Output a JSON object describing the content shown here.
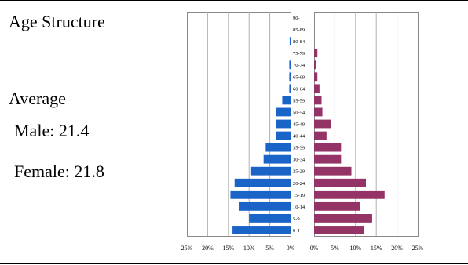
{
  "title": "Age Structure",
  "average": {
    "heading": "Average",
    "male_label": "Male: 21.4",
    "female_label": "Female: 21.8"
  },
  "colors": {
    "male": "#1a64c8",
    "female": "#943466",
    "grid": "#b0b0b0",
    "rule": "#000000"
  },
  "chart_data": {
    "type": "bar",
    "orientation": "horizontal",
    "categories": [
      "0-4",
      "5-9",
      "10-14",
      "15-19",
      "20-24",
      "25-29",
      "30-34",
      "35-39",
      "40-44",
      "45-49",
      "50-54",
      "55-59",
      "60-64",
      "65-69",
      "70-74",
      "75-79",
      "80-84",
      "85-89",
      "90-"
    ],
    "series": [
      {
        "name": "Male",
        "values": [
          14,
          10,
          12.5,
          14.5,
          13.5,
          9.5,
          6.5,
          6,
          3.5,
          3.5,
          3.5,
          2,
          0.3,
          0.3,
          0.3,
          0,
          0.2,
          0,
          0
        ]
      },
      {
        "name": "Female",
        "values": [
          12,
          14,
          11,
          17,
          12.5,
          9,
          6.5,
          6.5,
          3,
          4,
          2,
          1.8,
          1.3,
          0.8,
          0.4,
          0.8,
          0,
          0,
          0
        ]
      }
    ],
    "xlim": [
      0,
      25
    ],
    "male_ticks": [
      "25%",
      "20%",
      "15%",
      "10%",
      "5%",
      "0%"
    ],
    "female_ticks": [
      "0%",
      "5%",
      "10%",
      "15%",
      "20%",
      "25%"
    ],
    "grid": true
  }
}
